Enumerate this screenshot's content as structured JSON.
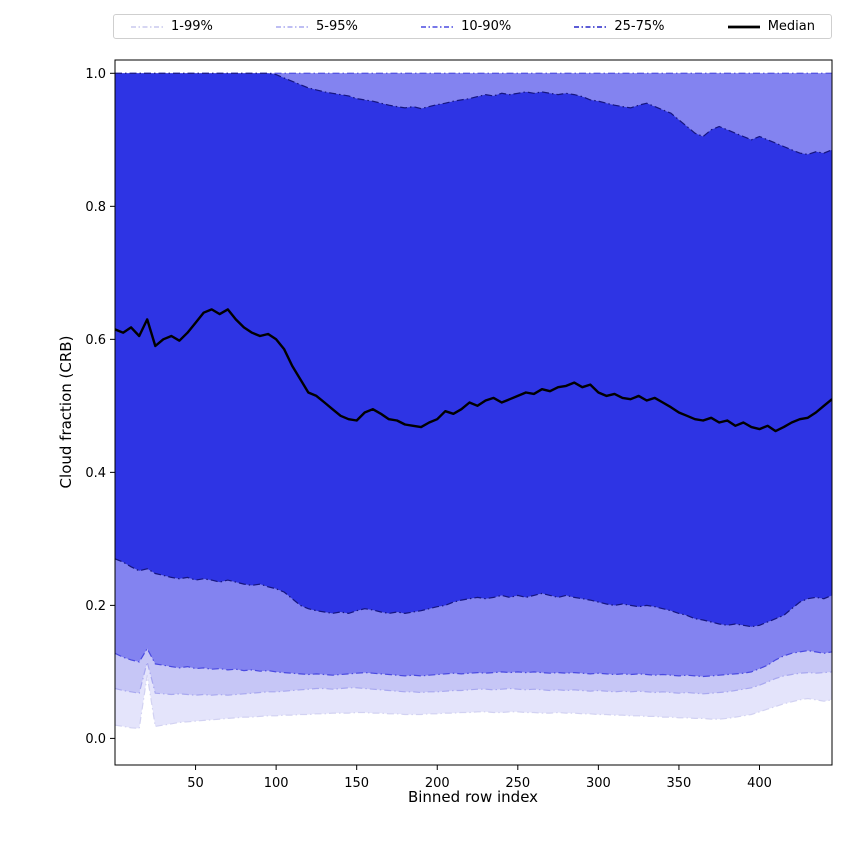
{
  "legend": {
    "items": [
      {
        "label": "1-99%",
        "color": "#c9c9ee",
        "dash": true
      },
      {
        "label": "5-95%",
        "color": "#a8a8ef",
        "dash": true
      },
      {
        "label": "10-90%",
        "color": "#4a4ae0",
        "dash": true
      },
      {
        "label": "25-75%",
        "color": "#2626c9",
        "dash": true
      },
      {
        "label": "Median",
        "color": "#000000",
        "dash": false
      }
    ]
  },
  "chart_data": {
    "type": "area",
    "title": "",
    "xlabel": "Binned row index",
    "ylabel": "Cloud fraction (CRB)",
    "xlim": [
      0,
      445
    ],
    "ylim": [
      -0.04,
      1.02
    ],
    "xticks": [
      50,
      100,
      150,
      200,
      250,
      300,
      350,
      400
    ],
    "yticks": [
      0.0,
      0.2,
      0.4,
      0.6,
      0.8,
      1.0
    ],
    "grid": false,
    "legend_position": "top",
    "median_color": "#000000",
    "median_width": 2.4,
    "x": [
      0,
      5,
      10,
      15,
      20,
      25,
      30,
      35,
      40,
      45,
      50,
      55,
      60,
      65,
      70,
      75,
      80,
      85,
      90,
      95,
      100,
      105,
      110,
      115,
      120,
      125,
      130,
      135,
      140,
      145,
      150,
      155,
      160,
      165,
      170,
      175,
      180,
      185,
      190,
      195,
      200,
      205,
      210,
      215,
      220,
      225,
      230,
      235,
      240,
      245,
      250,
      255,
      260,
      265,
      270,
      275,
      280,
      285,
      290,
      295,
      300,
      305,
      310,
      315,
      320,
      325,
      330,
      335,
      340,
      345,
      350,
      355,
      360,
      365,
      370,
      375,
      380,
      385,
      390,
      395,
      400,
      405,
      410,
      415,
      420,
      425,
      430,
      435,
      440,
      445
    ],
    "series": [
      {
        "name": "p1",
        "values": [
          0.02,
          0.018,
          0.016,
          0.015,
          0.095,
          0.018,
          0.02,
          0.022,
          0.024,
          0.025,
          0.026,
          0.027,
          0.028,
          0.029,
          0.03,
          0.031,
          0.032,
          0.032,
          0.033,
          0.034,
          0.034,
          0.035,
          0.035,
          0.036,
          0.036,
          0.037,
          0.037,
          0.038,
          0.038,
          0.038,
          0.039,
          0.039,
          0.038,
          0.038,
          0.037,
          0.037,
          0.036,
          0.036,
          0.036,
          0.037,
          0.037,
          0.038,
          0.038,
          0.039,
          0.039,
          0.04,
          0.04,
          0.039,
          0.039,
          0.04,
          0.04,
          0.039,
          0.039,
          0.038,
          0.038,
          0.039,
          0.038,
          0.038,
          0.037,
          0.037,
          0.036,
          0.036,
          0.035,
          0.035,
          0.034,
          0.034,
          0.033,
          0.033,
          0.032,
          0.032,
          0.031,
          0.031,
          0.03,
          0.03,
          0.029,
          0.029,
          0.03,
          0.032,
          0.034,
          0.036,
          0.04,
          0.044,
          0.048,
          0.052,
          0.055,
          0.058,
          0.06,
          0.058,
          0.056,
          0.058
        ]
      },
      {
        "name": "p5",
        "values": [
          0.075,
          0.072,
          0.07,
          0.068,
          0.115,
          0.068,
          0.067,
          0.066,
          0.067,
          0.066,
          0.065,
          0.066,
          0.065,
          0.066,
          0.065,
          0.066,
          0.067,
          0.068,
          0.069,
          0.07,
          0.07,
          0.071,
          0.072,
          0.073,
          0.074,
          0.075,
          0.075,
          0.074,
          0.075,
          0.076,
          0.076,
          0.075,
          0.074,
          0.073,
          0.072,
          0.071,
          0.07,
          0.07,
          0.069,
          0.07,
          0.07,
          0.071,
          0.072,
          0.072,
          0.073,
          0.074,
          0.074,
          0.073,
          0.074,
          0.075,
          0.074,
          0.073,
          0.074,
          0.073,
          0.072,
          0.073,
          0.072,
          0.073,
          0.072,
          0.071,
          0.072,
          0.071,
          0.07,
          0.071,
          0.07,
          0.071,
          0.07,
          0.069,
          0.07,
          0.069,
          0.068,
          0.069,
          0.068,
          0.067,
          0.068,
          0.069,
          0.07,
          0.072,
          0.074,
          0.076,
          0.08,
          0.085,
          0.09,
          0.094,
          0.096,
          0.098,
          0.099,
          0.098,
          0.099,
          0.1
        ]
      },
      {
        "name": "p10",
        "values": [
          0.128,
          0.122,
          0.118,
          0.115,
          0.135,
          0.112,
          0.11,
          0.108,
          0.106,
          0.108,
          0.105,
          0.106,
          0.104,
          0.105,
          0.103,
          0.104,
          0.102,
          0.103,
          0.101,
          0.102,
          0.1,
          0.099,
          0.098,
          0.097,
          0.096,
          0.097,
          0.096,
          0.095,
          0.096,
          0.097,
          0.098,
          0.099,
          0.098,
          0.097,
          0.096,
          0.095,
          0.094,
          0.095,
          0.094,
          0.095,
          0.096,
          0.097,
          0.098,
          0.097,
          0.098,
          0.099,
          0.098,
          0.099,
          0.1,
          0.099,
          0.1,
          0.099,
          0.1,
          0.099,
          0.098,
          0.099,
          0.098,
          0.099,
          0.098,
          0.097,
          0.098,
          0.097,
          0.096,
          0.097,
          0.096,
          0.097,
          0.096,
          0.095,
          0.096,
          0.095,
          0.094,
          0.095,
          0.094,
          0.093,
          0.094,
          0.095,
          0.096,
          0.097,
          0.098,
          0.1,
          0.105,
          0.11,
          0.118,
          0.124,
          0.128,
          0.13,
          0.132,
          0.13,
          0.128,
          0.13
        ]
      },
      {
        "name": "p25",
        "values": [
          0.27,
          0.265,
          0.258,
          0.252,
          0.255,
          0.248,
          0.245,
          0.242,
          0.24,
          0.242,
          0.238,
          0.24,
          0.238,
          0.235,
          0.238,
          0.235,
          0.232,
          0.23,
          0.232,
          0.228,
          0.225,
          0.22,
          0.21,
          0.2,
          0.195,
          0.192,
          0.19,
          0.188,
          0.19,
          0.188,
          0.192,
          0.195,
          0.193,
          0.19,
          0.188,
          0.19,
          0.188,
          0.19,
          0.192,
          0.195,
          0.198,
          0.2,
          0.205,
          0.208,
          0.21,
          0.212,
          0.21,
          0.212,
          0.215,
          0.212,
          0.215,
          0.212,
          0.215,
          0.218,
          0.215,
          0.212,
          0.215,
          0.212,
          0.21,
          0.208,
          0.205,
          0.202,
          0.2,
          0.202,
          0.2,
          0.198,
          0.2,
          0.198,
          0.195,
          0.192,
          0.188,
          0.185,
          0.18,
          0.178,
          0.175,
          0.172,
          0.17,
          0.172,
          0.17,
          0.168,
          0.17,
          0.175,
          0.18,
          0.185,
          0.195,
          0.205,
          0.21,
          0.212,
          0.21,
          0.215
        ]
      },
      {
        "name": "median",
        "values": [
          0.615,
          0.61,
          0.618,
          0.605,
          0.63,
          0.59,
          0.6,
          0.605,
          0.598,
          0.61,
          0.625,
          0.64,
          0.645,
          0.638,
          0.645,
          0.63,
          0.618,
          0.61,
          0.605,
          0.608,
          0.6,
          0.585,
          0.56,
          0.54,
          0.52,
          0.515,
          0.505,
          0.495,
          0.485,
          0.48,
          0.478,
          0.49,
          0.495,
          0.488,
          0.48,
          0.478,
          0.472,
          0.47,
          0.468,
          0.475,
          0.48,
          0.492,
          0.488,
          0.495,
          0.505,
          0.5,
          0.508,
          0.512,
          0.505,
          0.51,
          0.515,
          0.52,
          0.518,
          0.525,
          0.522,
          0.528,
          0.53,
          0.535,
          0.528,
          0.532,
          0.52,
          0.515,
          0.518,
          0.512,
          0.51,
          0.515,
          0.508,
          0.512,
          0.505,
          0.498,
          0.49,
          0.485,
          0.48,
          0.478,
          0.482,
          0.475,
          0.478,
          0.47,
          0.475,
          0.468,
          0.465,
          0.47,
          0.462,
          0.468,
          0.475,
          0.48,
          0.482,
          0.49,
          0.5,
          0.51
        ]
      },
      {
        "name": "p75",
        "values": [
          1.0,
          1.0,
          1.0,
          1.0,
          1.0,
          1.0,
          1.0,
          1.0,
          1.0,
          1.0,
          1.0,
          1.0,
          1.0,
          1.0,
          1.0,
          1.0,
          1.0,
          1.0,
          1.0,
          1.0,
          0.998,
          0.993,
          0.988,
          0.983,
          0.978,
          0.975,
          0.972,
          0.97,
          0.968,
          0.966,
          0.962,
          0.96,
          0.958,
          0.955,
          0.952,
          0.95,
          0.948,
          0.95,
          0.947,
          0.95,
          0.953,
          0.955,
          0.958,
          0.96,
          0.962,
          0.965,
          0.968,
          0.966,
          0.97,
          0.968,
          0.97,
          0.972,
          0.97,
          0.972,
          0.97,
          0.968,
          0.97,
          0.968,
          0.965,
          0.96,
          0.958,
          0.955,
          0.952,
          0.95,
          0.948,
          0.952,
          0.955,
          0.95,
          0.945,
          0.94,
          0.93,
          0.92,
          0.91,
          0.905,
          0.915,
          0.92,
          0.915,
          0.91,
          0.905,
          0.9,
          0.905,
          0.9,
          0.895,
          0.89,
          0.885,
          0.88,
          0.878,
          0.882,
          0.88,
          0.885
        ]
      },
      {
        "name": "p90",
        "values": 1.0
      },
      {
        "name": "p95",
        "values": 1.0
      },
      {
        "name": "p99",
        "values": 1.0
      }
    ],
    "bands": [
      {
        "label": "1-99%",
        "lo": "p1",
        "hi": "p99",
        "fill": "#e4e4fb",
        "edge": "#d2d2f2"
      },
      {
        "label": "5-95%",
        "lo": "p5",
        "hi": "p95",
        "fill": "#c6c6f6",
        "edge": "#a8a8ef"
      },
      {
        "label": "10-90%",
        "lo": "p10",
        "hi": "p90",
        "fill": "#8383f0",
        "edge": "#4a4ae0"
      },
      {
        "label": "25-75%",
        "lo": "p25",
        "hi": "p75",
        "fill": "#2e34e4",
        "edge": "#15157e"
      }
    ]
  }
}
